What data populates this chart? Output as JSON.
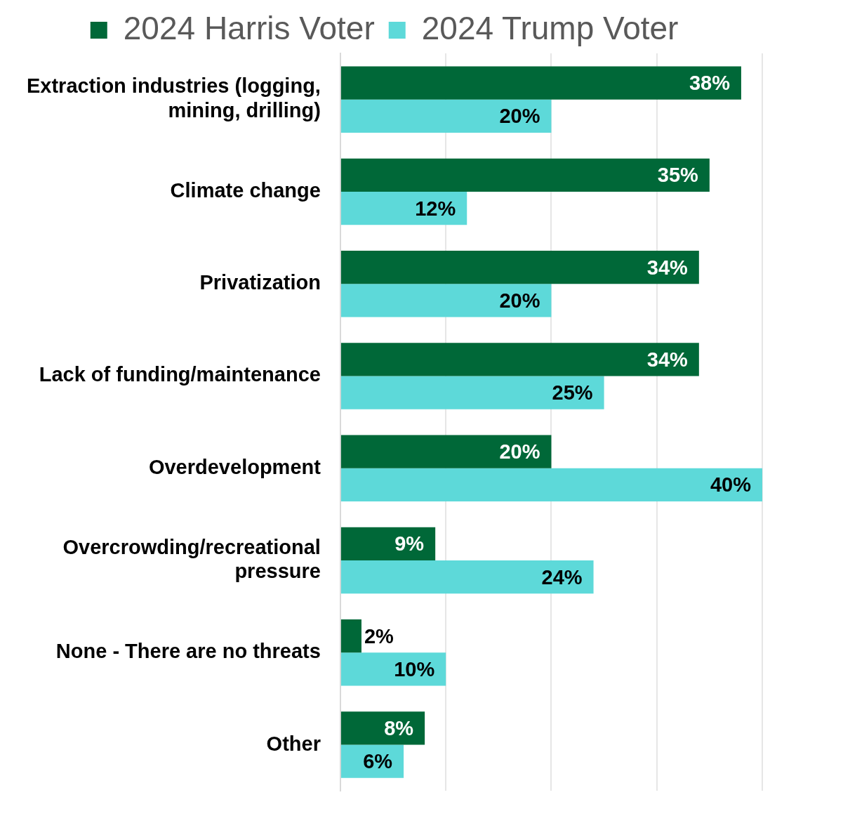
{
  "chart_data": {
    "type": "bar",
    "orientation": "horizontal",
    "categories": [
      "Extraction industries (logging, mining, drilling)",
      "Climate change",
      "Privatization",
      "Lack of funding/maintenance",
      "Overdevelopment",
      "Overcrowding/recreational pressure",
      "None - There are no threats",
      "Other"
    ],
    "series": [
      {
        "name": "2024 Harris Voter",
        "color": "#006838",
        "values": [
          38,
          35,
          34,
          34,
          20,
          9,
          2,
          8
        ],
        "value_labels": [
          "38%",
          "35%",
          "34%",
          "34%",
          "20%",
          "9%",
          "2%",
          "8%"
        ]
      },
      {
        "name": "2024 Trump Voter",
        "color": "#5dd9d9",
        "values": [
          20,
          12,
          20,
          25,
          40,
          24,
          10,
          6
        ],
        "value_labels": [
          "20%",
          "12%",
          "20%",
          "25%",
          "40%",
          "24%",
          "10%",
          "6%"
        ]
      }
    ],
    "tick_labels": "y",
    "grid": "x",
    "legend": "top"
  }
}
